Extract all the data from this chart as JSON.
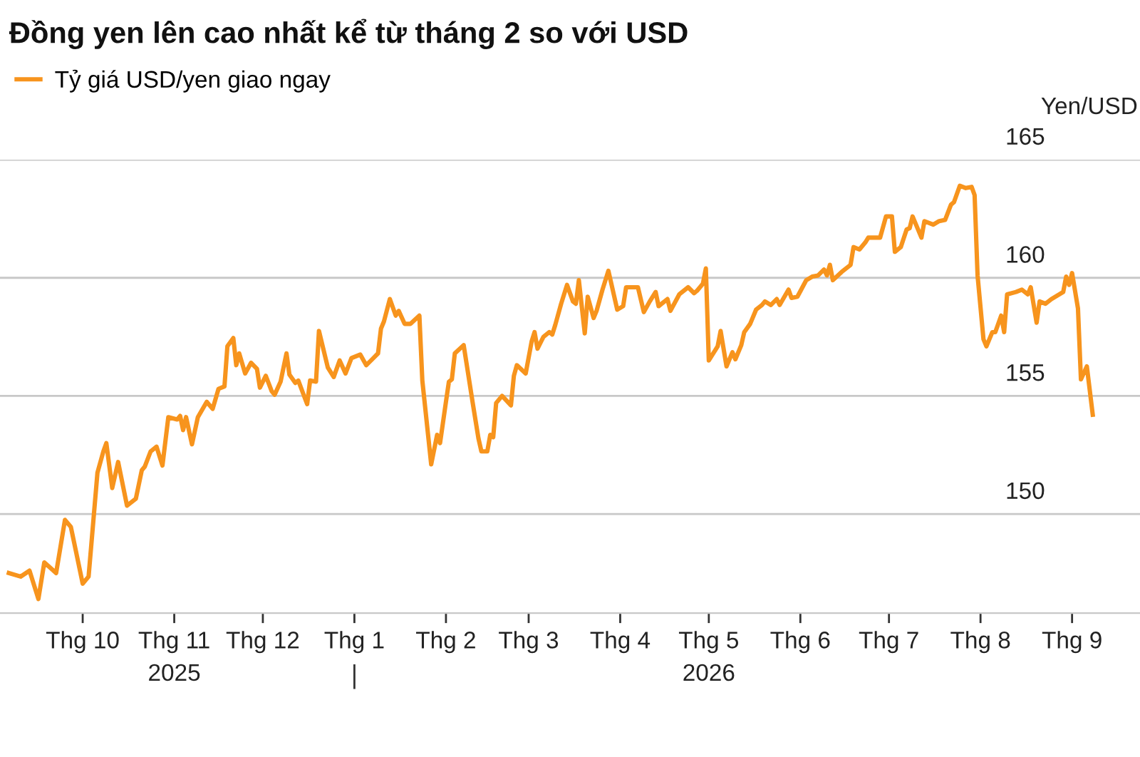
{
  "chart_data": {
    "type": "line",
    "title": "Đồng yen lên cao nhất kể từ tháng 2 so với USD",
    "ylabel": "Yen/USD",
    "x": [
      "2025-09-06",
      "2025-09-10",
      "2025-09-13",
      "2025-09-16",
      "2025-09-18",
      "2025-09-22",
      "2025-09-25",
      "2025-09-27",
      "2025-10-01",
      "2025-10-03",
      "2025-10-06",
      "2025-10-08",
      "2025-10-09",
      "2025-10-11",
      "2025-10-13",
      "2025-10-16",
      "2025-10-19",
      "2025-10-21",
      "2025-10-22",
      "2025-10-24",
      "2025-10-26",
      "2025-10-28",
      "2025-10-30",
      "2025-11-02",
      "2025-11-03",
      "2025-11-04",
      "2025-11-05",
      "2025-11-07",
      "2025-11-09",
      "2025-11-12",
      "2025-11-14",
      "2025-11-16",
      "2025-11-18",
      "2025-11-19",
      "2025-11-21",
      "2025-11-22",
      "2025-11-23",
      "2025-11-25",
      "2025-11-27",
      "2025-11-29",
      "2025-11-30",
      "2025-12-02",
      "2025-12-04",
      "2025-12-05",
      "2025-12-07",
      "2025-12-09",
      "2025-12-10",
      "2025-12-12",
      "2025-12-13",
      "2025-12-16",
      "2025-12-17",
      "2025-12-19",
      "2025-12-20",
      "2025-12-23",
      "2025-12-25",
      "2025-12-27",
      "2025-12-29",
      "2025-12-31",
      "2026-01-03",
      "2026-01-05",
      "2026-01-07",
      "2026-01-09",
      "2026-01-10",
      "2026-01-11",
      "2026-01-13",
      "2026-01-15",
      "2026-01-16",
      "2026-01-18",
      "2026-01-20",
      "2026-01-23",
      "2026-01-24",
      "2026-01-27",
      "2026-01-29",
      "2026-01-30",
      "2026-02-01",
      "2026-02-02",
      "2026-02-03",
      "2026-02-04",
      "2026-02-07",
      "2026-02-10",
      "2026-02-12",
      "2026-02-13",
      "2026-02-15",
      "2026-02-16",
      "2026-02-17",
      "2026-02-18",
      "2026-02-20",
      "2026-02-23",
      "2026-02-24",
      "2026-02-25",
      "2026-02-28",
      "2026-03-02",
      "2026-03-03",
      "2026-03-04",
      "2026-03-06",
      "2026-03-08",
      "2026-03-09",
      "2026-03-10",
      "2026-03-12",
      "2026-03-14",
      "2026-03-16",
      "2026-03-17",
      "2026-03-18",
      "2026-03-20",
      "2026-03-21",
      "2026-03-23",
      "2026-03-24",
      "2026-03-26",
      "2026-03-28",
      "2026-03-31",
      "2026-04-02",
      "2026-04-03",
      "2026-04-07",
      "2026-04-09",
      "2026-04-11",
      "2026-04-13",
      "2026-04-14",
      "2026-04-17",
      "2026-04-18",
      "2026-04-21",
      "2026-04-24",
      "2026-04-26",
      "2026-04-27",
      "2026-04-29",
      "2026-04-30",
      "2026-05-01",
      "2026-05-04",
      "2026-05-05",
      "2026-05-07",
      "2026-05-09",
      "2026-05-10",
      "2026-05-12",
      "2026-05-13",
      "2026-05-15",
      "2026-05-17",
      "2026-05-19",
      "2026-05-20",
      "2026-05-22",
      "2026-05-24",
      "2026-05-25",
      "2026-05-28",
      "2026-05-29",
      "2026-05-31",
      "2026-06-03",
      "2026-06-05",
      "2026-06-07",
      "2026-06-09",
      "2026-06-10",
      "2026-06-11",
      "2026-06-12",
      "2026-06-15",
      "2026-06-18",
      "2026-06-19",
      "2026-06-21",
      "2026-06-23",
      "2026-06-24",
      "2026-06-28",
      "2026-06-30",
      "2026-07-02",
      "2026-07-03",
      "2026-07-05",
      "2026-07-07",
      "2026-07-08",
      "2026-07-09",
      "2026-07-12",
      "2026-07-13",
      "2026-07-16",
      "2026-07-18",
      "2026-07-20",
      "2026-07-22",
      "2026-07-23",
      "2026-07-25",
      "2026-07-27",
      "2026-07-29",
      "2026-07-30",
      "2026-07-31",
      "2026-08-02",
      "2026-08-03",
      "2026-08-05",
      "2026-08-06",
      "2026-08-08",
      "2026-08-09",
      "2026-08-10",
      "2026-08-13",
      "2026-08-15",
      "2026-08-17",
      "2026-08-18",
      "2026-08-20",
      "2026-08-21",
      "2026-08-23",
      "2026-08-25",
      "2026-08-29",
      "2026-08-30",
      "2026-08-31",
      "2026-09-01",
      "2026-09-03",
      "2026-09-04",
      "2026-09-06",
      "2026-09-08"
    ],
    "series": [
      {
        "name": "Tỷ giá USD/yen giao ngay",
        "color": "#f7941d",
        "values": [
          147.5,
          147.35,
          147.6,
          146.4,
          147.95,
          147.5,
          149.75,
          149.45,
          147.05,
          147.35,
          151.75,
          152.65,
          153.0,
          151.1,
          152.2,
          150.35,
          150.65,
          151.85,
          152.0,
          152.65,
          152.85,
          152.05,
          154.1,
          154.0,
          154.15,
          153.55,
          154.1,
          152.95,
          154.1,
          154.75,
          154.45,
          155.3,
          155.4,
          157.1,
          157.45,
          156.3,
          156.8,
          155.95,
          156.4,
          156.15,
          155.35,
          155.85,
          155.2,
          155.05,
          155.6,
          156.8,
          155.9,
          155.55,
          155.65,
          154.65,
          155.65,
          155.6,
          157.75,
          156.2,
          155.8,
          156.5,
          155.95,
          156.6,
          156.75,
          156.3,
          156.55,
          156.8,
          157.85,
          158.15,
          159.1,
          158.4,
          158.6,
          158.05,
          158.05,
          158.4,
          155.65,
          152.1,
          153.35,
          153.0,
          154.75,
          155.6,
          155.7,
          156.8,
          157.15,
          154.75,
          153.2,
          152.65,
          152.65,
          153.35,
          153.25,
          154.7,
          155.0,
          154.6,
          155.85,
          156.3,
          155.95,
          157.3,
          157.7,
          157.0,
          157.5,
          157.7,
          157.6,
          158.0,
          158.9,
          159.7,
          159.0,
          158.9,
          159.9,
          157.65,
          159.2,
          158.3,
          158.6,
          159.5,
          160.3,
          158.65,
          158.8,
          159.6,
          159.6,
          158.55,
          159.0,
          159.4,
          158.8,
          159.1,
          158.6,
          159.3,
          159.6,
          159.35,
          159.45,
          159.75,
          160.4,
          156.5,
          157.1,
          157.75,
          156.25,
          156.85,
          156.55,
          157.15,
          157.7,
          158.05,
          158.65,
          158.85,
          159.0,
          158.85,
          159.1,
          158.85,
          159.5,
          159.15,
          159.2,
          159.9,
          160.05,
          160.1,
          160.35,
          160.1,
          160.55,
          159.9,
          160.25,
          160.55,
          161.3,
          161.2,
          161.5,
          161.7,
          161.7,
          162.6,
          162.6,
          161.1,
          161.3,
          162.05,
          162.1,
          162.6,
          161.7,
          162.4,
          162.25,
          162.4,
          162.45,
          163.1,
          163.2,
          163.9,
          163.8,
          163.85,
          163.5,
          160.1,
          157.4,
          157.1,
          157.7,
          157.7,
          158.4,
          157.7,
          159.3,
          159.4,
          159.5,
          159.3,
          159.6,
          158.1,
          159.0,
          158.9,
          159.1,
          159.4,
          160.05,
          159.7,
          160.2,
          158.7,
          155.7,
          156.25,
          154.2
        ]
      }
    ],
    "xlim": [
      "2025-09-03",
      "2026-09-24"
    ],
    "xticks": [
      {
        "value": "2025-10-01",
        "label": "Thg 10"
      },
      {
        "value": "2025-11-01",
        "label": "Thg 11\n2025"
      },
      {
        "value": "2025-12-01",
        "label": "Thg 12"
      },
      {
        "value": "2026-01-01",
        "label": "Thg 1"
      },
      {
        "value": "2026-02-01",
        "label": "Thg 2"
      },
      {
        "value": "2026-03-01",
        "label": "Thg 3"
      },
      {
        "value": "2026-04-01",
        "label": "Thg 4"
      },
      {
        "value": "2026-05-01",
        "label": "Thg 5\n2026"
      },
      {
        "value": "2026-06-01",
        "label": "Thg 6"
      },
      {
        "value": "2026-07-01",
        "label": "Thg 7"
      },
      {
        "value": "2026-08-01",
        "label": "Thg 8"
      },
      {
        "value": "2026-09-01",
        "label": "Thg 9"
      }
    ],
    "ylim": [
      145.8,
      165
    ],
    "yticks": [
      150,
      155,
      160,
      165
    ],
    "grid": "y",
    "legend": "top left",
    "marker": "none",
    "line_style": "solid"
  }
}
